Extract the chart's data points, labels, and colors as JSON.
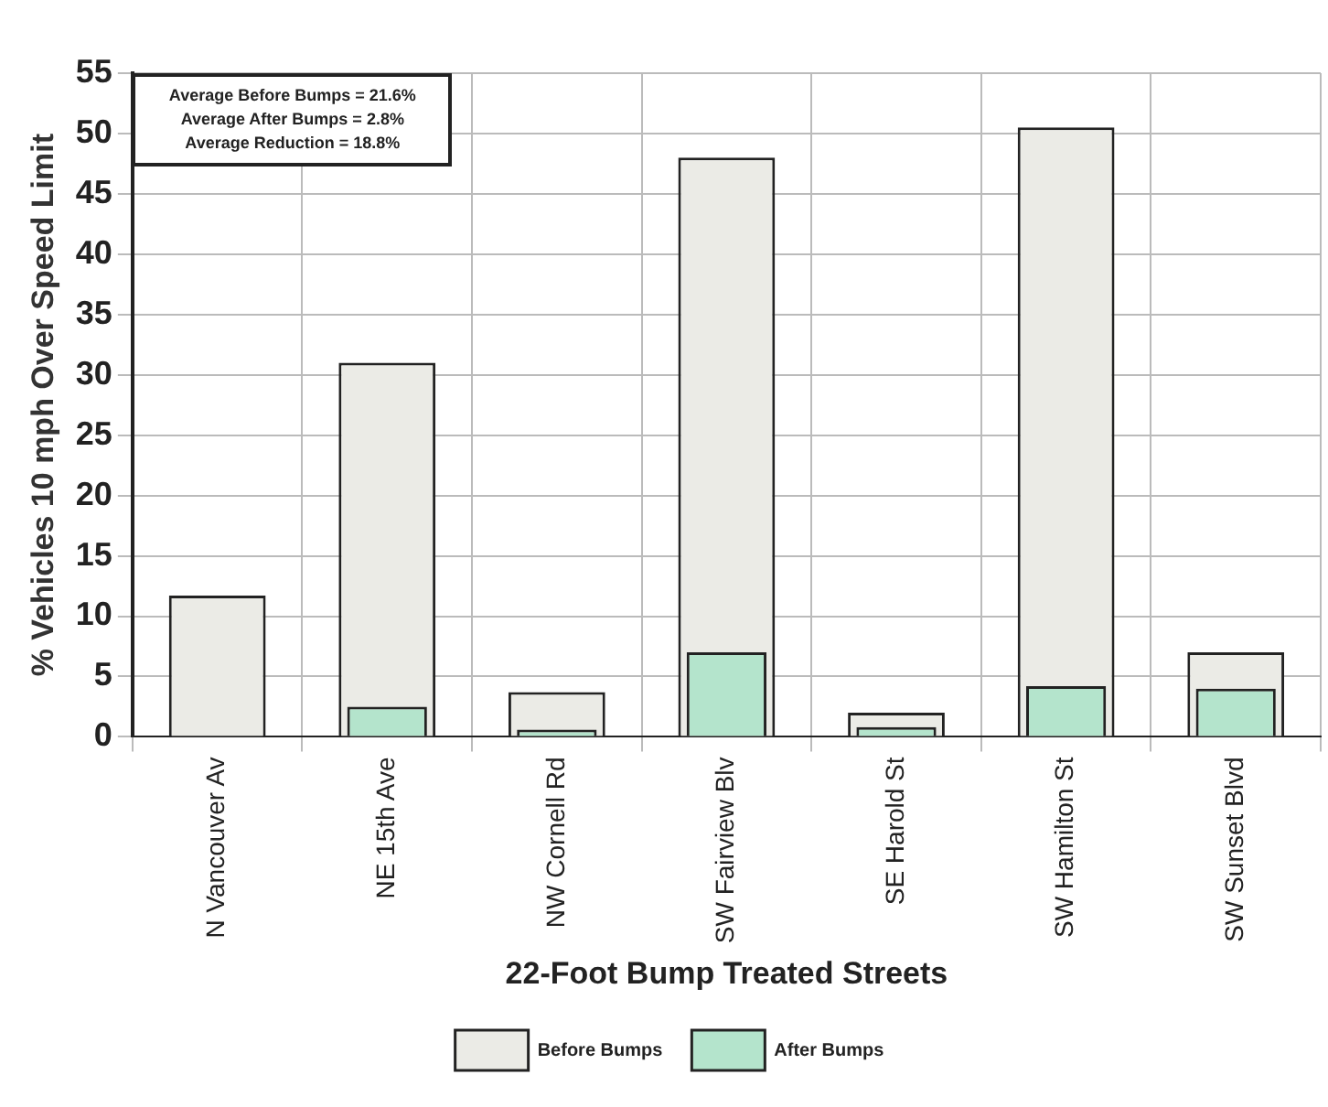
{
  "chart_data": {
    "type": "bar",
    "xlabel": "22-Foot Bump Treated Streets",
    "ylabel": "% Vehicles 10 mph Over Speed Limit",
    "categories": [
      "N Vancouver Av",
      "NE 15th Ave",
      "NW Cornell Rd",
      "SW Fairview Blv",
      "SE Harold St",
      "SW Hamilton St",
      "SW Sunset Blvd"
    ],
    "series": [
      {
        "name": "Before Bumps",
        "color": "#ebebe6",
        "values": [
          11.7,
          31,
          3.7,
          48,
          2,
          50.5,
          7
        ]
      },
      {
        "name": "After Bumps",
        "color": "#b4e4cc",
        "values": [
          null,
          2.5,
          0.6,
          7,
          0.8,
          4.2,
          4
        ]
      }
    ],
    "ylim": [
      0,
      55
    ],
    "yticks": [
      0,
      5,
      10,
      15,
      20,
      25,
      30,
      35,
      40,
      45,
      50,
      55
    ],
    "grid": true,
    "legend": "bottom",
    "annotations": [
      "Average Before Bumps = 21.6%",
      "Average After Bumps = 2.8%",
      "Average Reduction = 18.8%"
    ]
  }
}
